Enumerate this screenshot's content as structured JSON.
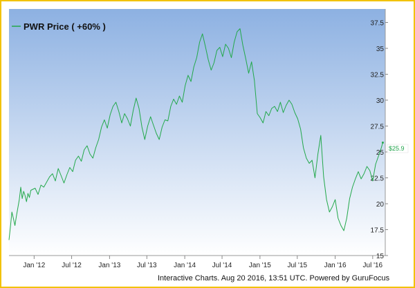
{
  "chart_data": {
    "type": "line",
    "series": [
      {
        "name": "PWR Price ( +60% )",
        "color": "#22a84a",
        "points": [
          [
            "2011-09-01",
            16.5
          ],
          [
            "2011-09-08",
            17.8
          ],
          [
            "2011-09-15",
            19.2
          ],
          [
            "2011-09-22",
            18.6
          ],
          [
            "2011-09-30",
            17.9
          ],
          [
            "2011-10-07",
            18.8
          ],
          [
            "2011-10-14",
            19.6
          ],
          [
            "2011-10-21",
            20.4
          ],
          [
            "2011-10-28",
            21.6
          ],
          [
            "2011-11-04",
            20.5
          ],
          [
            "2011-11-11",
            21.2
          ],
          [
            "2011-11-18",
            20.8
          ],
          [
            "2011-11-25",
            20.2
          ],
          [
            "2011-12-02",
            21.0
          ],
          [
            "2011-12-09",
            20.6
          ],
          [
            "2011-12-16",
            21.3
          ],
          [
            "2012-01-06",
            21.5
          ],
          [
            "2012-01-20",
            20.9
          ],
          [
            "2012-02-03",
            21.8
          ],
          [
            "2012-02-17",
            21.6
          ],
          [
            "2012-03-02",
            22.1
          ],
          [
            "2012-03-16",
            22.6
          ],
          [
            "2012-03-30",
            22.9
          ],
          [
            "2012-04-13",
            22.2
          ],
          [
            "2012-04-27",
            23.4
          ],
          [
            "2012-05-11",
            22.7
          ],
          [
            "2012-05-25",
            22.0
          ],
          [
            "2012-06-08",
            22.8
          ],
          [
            "2012-06-22",
            23.5
          ],
          [
            "2012-07-06",
            23.1
          ],
          [
            "2012-07-20",
            24.2
          ],
          [
            "2012-08-03",
            24.6
          ],
          [
            "2012-08-17",
            24.1
          ],
          [
            "2012-08-31",
            25.2
          ],
          [
            "2012-09-14",
            25.6
          ],
          [
            "2012-09-28",
            24.8
          ],
          [
            "2012-10-12",
            24.4
          ],
          [
            "2012-10-26",
            25.4
          ],
          [
            "2012-11-09",
            26.2
          ],
          [
            "2012-11-23",
            27.4
          ],
          [
            "2012-12-07",
            28.1
          ],
          [
            "2012-12-21",
            27.3
          ],
          [
            "2013-01-04",
            28.6
          ],
          [
            "2013-01-18",
            29.4
          ],
          [
            "2013-02-01",
            29.8
          ],
          [
            "2013-02-15",
            28.9
          ],
          [
            "2013-03-01",
            27.8
          ],
          [
            "2013-03-15",
            28.7
          ],
          [
            "2013-03-29",
            28.2
          ],
          [
            "2013-04-12",
            27.5
          ],
          [
            "2013-04-26",
            29.0
          ],
          [
            "2013-05-10",
            30.2
          ],
          [
            "2013-05-24",
            29.2
          ],
          [
            "2013-06-07",
            27.4
          ],
          [
            "2013-06-21",
            26.2
          ],
          [
            "2013-07-05",
            27.5
          ],
          [
            "2013-07-19",
            28.4
          ],
          [
            "2013-08-02",
            27.6
          ],
          [
            "2013-08-16",
            26.8
          ],
          [
            "2013-08-30",
            26.2
          ],
          [
            "2013-09-13",
            27.4
          ],
          [
            "2013-09-27",
            28.1
          ],
          [
            "2013-10-11",
            28.0
          ],
          [
            "2013-10-25",
            29.4
          ],
          [
            "2013-11-08",
            30.1
          ],
          [
            "2013-11-22",
            29.6
          ],
          [
            "2013-12-06",
            30.4
          ],
          [
            "2013-12-20",
            29.8
          ],
          [
            "2014-01-03",
            31.4
          ],
          [
            "2014-01-17",
            32.4
          ],
          [
            "2014-01-31",
            31.8
          ],
          [
            "2014-02-14",
            33.2
          ],
          [
            "2014-02-28",
            34.1
          ],
          [
            "2014-03-14",
            35.6
          ],
          [
            "2014-03-28",
            36.4
          ],
          [
            "2014-04-11",
            35.2
          ],
          [
            "2014-04-25",
            33.9
          ],
          [
            "2014-05-09",
            32.9
          ],
          [
            "2014-05-23",
            33.6
          ],
          [
            "2014-06-06",
            34.8
          ],
          [
            "2014-06-20",
            35.1
          ],
          [
            "2014-07-04",
            34.2
          ],
          [
            "2014-07-18",
            35.4
          ],
          [
            "2014-08-01",
            35.0
          ],
          [
            "2014-08-15",
            34.1
          ],
          [
            "2014-08-29",
            35.6
          ],
          [
            "2014-09-12",
            36.6
          ],
          [
            "2014-09-26",
            36.9
          ],
          [
            "2014-10-10",
            35.3
          ],
          [
            "2014-10-24",
            34.0
          ],
          [
            "2014-11-07",
            32.6
          ],
          [
            "2014-11-21",
            33.7
          ],
          [
            "2014-12-05",
            31.9
          ],
          [
            "2014-12-19",
            28.7
          ],
          [
            "2015-01-02",
            28.3
          ],
          [
            "2015-01-16",
            27.8
          ],
          [
            "2015-01-30",
            28.9
          ],
          [
            "2015-02-13",
            28.5
          ],
          [
            "2015-02-27",
            29.2
          ],
          [
            "2015-03-13",
            29.4
          ],
          [
            "2015-03-27",
            28.9
          ],
          [
            "2015-04-10",
            29.8
          ],
          [
            "2015-04-24",
            28.8
          ],
          [
            "2015-05-08",
            29.5
          ],
          [
            "2015-05-22",
            30.0
          ],
          [
            "2015-06-05",
            29.6
          ],
          [
            "2015-06-19",
            28.8
          ],
          [
            "2015-07-03",
            28.2
          ],
          [
            "2015-07-17",
            27.2
          ],
          [
            "2015-07-31",
            25.4
          ],
          [
            "2015-08-14",
            24.4
          ],
          [
            "2015-08-28",
            23.9
          ],
          [
            "2015-09-11",
            24.2
          ],
          [
            "2015-09-25",
            22.5
          ],
          [
            "2015-10-09",
            24.8
          ],
          [
            "2015-10-23",
            26.6
          ],
          [
            "2015-11-06",
            22.6
          ],
          [
            "2015-11-20",
            20.4
          ],
          [
            "2015-12-04",
            19.2
          ],
          [
            "2015-12-18",
            19.7
          ],
          [
            "2016-01-01",
            20.4
          ],
          [
            "2016-01-15",
            18.6
          ],
          [
            "2016-01-29",
            17.9
          ],
          [
            "2016-02-12",
            17.4
          ],
          [
            "2016-02-26",
            18.6
          ],
          [
            "2016-03-11",
            20.5
          ],
          [
            "2016-03-25",
            21.6
          ],
          [
            "2016-04-08",
            22.4
          ],
          [
            "2016-04-22",
            23.1
          ],
          [
            "2016-05-06",
            22.4
          ],
          [
            "2016-05-20",
            22.9
          ],
          [
            "2016-06-03",
            23.6
          ],
          [
            "2016-06-17",
            23.2
          ],
          [
            "2016-07-01",
            22.2
          ],
          [
            "2016-07-15",
            23.8
          ],
          [
            "2016-07-29",
            24.6
          ],
          [
            "2016-08-12",
            25.4
          ],
          [
            "2016-08-19",
            25.9
          ]
        ]
      }
    ],
    "ylim": [
      15,
      38.8
    ],
    "xlim": [
      "2011-09-01",
      "2016-08-31"
    ],
    "yticks": [
      15,
      17.5,
      20,
      22.5,
      25,
      27.5,
      30,
      32.5,
      35,
      37.5
    ],
    "ytick_labels": [
      "15",
      "17.5",
      "20",
      "22.5",
      "25",
      "27.5",
      "30",
      "32.5",
      "35",
      "37.5"
    ],
    "xticks": [
      "2012-01-01",
      "2012-07-01",
      "2013-01-01",
      "2013-07-01",
      "2014-01-01",
      "2014-07-01",
      "2015-01-01",
      "2015-07-01",
      "2016-01-01",
      "2016-07-01"
    ],
    "xtick_labels": [
      "Jan '12",
      "Jul '12",
      "Jan '13",
      "Jul '13",
      "Jan '14",
      "Jul '14",
      "Jan '15",
      "Jul '15",
      "Jan '16",
      "Jul '16"
    ],
    "last_value_label": "$25.9",
    "legend_placement": "top-left",
    "grid": false,
    "background_gradient": [
      "#8db1e2",
      "#ffffff"
    ]
  },
  "footer": {
    "credit": "Interactive Charts. Aug 20 2016, 13:51 UTC. Powered by GuruFocus"
  }
}
